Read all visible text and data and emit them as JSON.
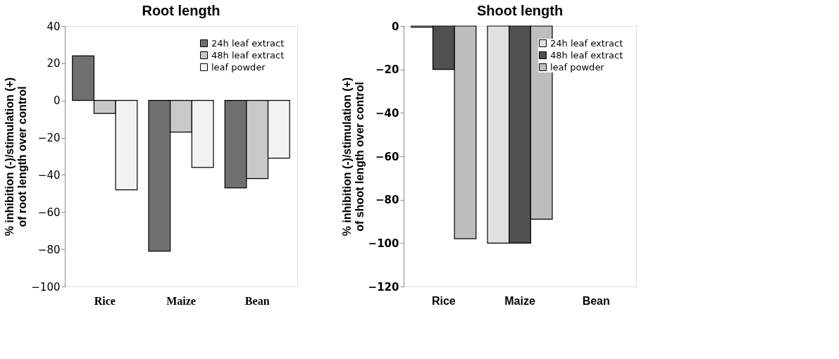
{
  "chart_data": [
    {
      "type": "bar",
      "title": "Root length",
      "ylabel": "% inhibition (-)/stimulation (+)\nof root length over control",
      "categories": [
        "Rice",
        "Maize",
        "Bean"
      ],
      "ylim": [
        -100,
        40
      ],
      "yticks": [
        -100,
        -80,
        -60,
        -40,
        -20,
        0,
        20,
        40
      ],
      "grid": false,
      "legend": "top right",
      "series": [
        {
          "name": "24h leaf extract",
          "color": "#707070",
          "values": [
            24,
            -81,
            -47
          ]
        },
        {
          "name": "48h leaf extract",
          "color": "#c8c8c8",
          "values": [
            -7,
            -17,
            -42
          ]
        },
        {
          "name": "leaf powder",
          "color": "#f2f2f2",
          "values": [
            -48,
            -36,
            -31
          ]
        }
      ]
    },
    {
      "type": "bar",
      "title": "Shoot length",
      "ylabel": "% inhibition (-)/stimulation (+)\nof shoot length over control",
      "categories": [
        "Rice",
        "Maize",
        "Bean"
      ],
      "ylim": [
        -120,
        0
      ],
      "yticks": [
        -120,
        -100,
        -80,
        -60,
        -40,
        -20,
        0
      ],
      "grid": false,
      "legend": "top right",
      "series": [
        {
          "name": "24h leaf extract",
          "color": "#e0e0e0",
          "values": [
            -0.5,
            -100,
            null
          ]
        },
        {
          "name": "48h leaf extract",
          "color": "#505050",
          "values": [
            -20,
            -100,
            null
          ]
        },
        {
          "name": "leaf powder",
          "color": "#bdbdbd",
          "values": [
            -98,
            -89,
            null
          ]
        }
      ]
    }
  ]
}
